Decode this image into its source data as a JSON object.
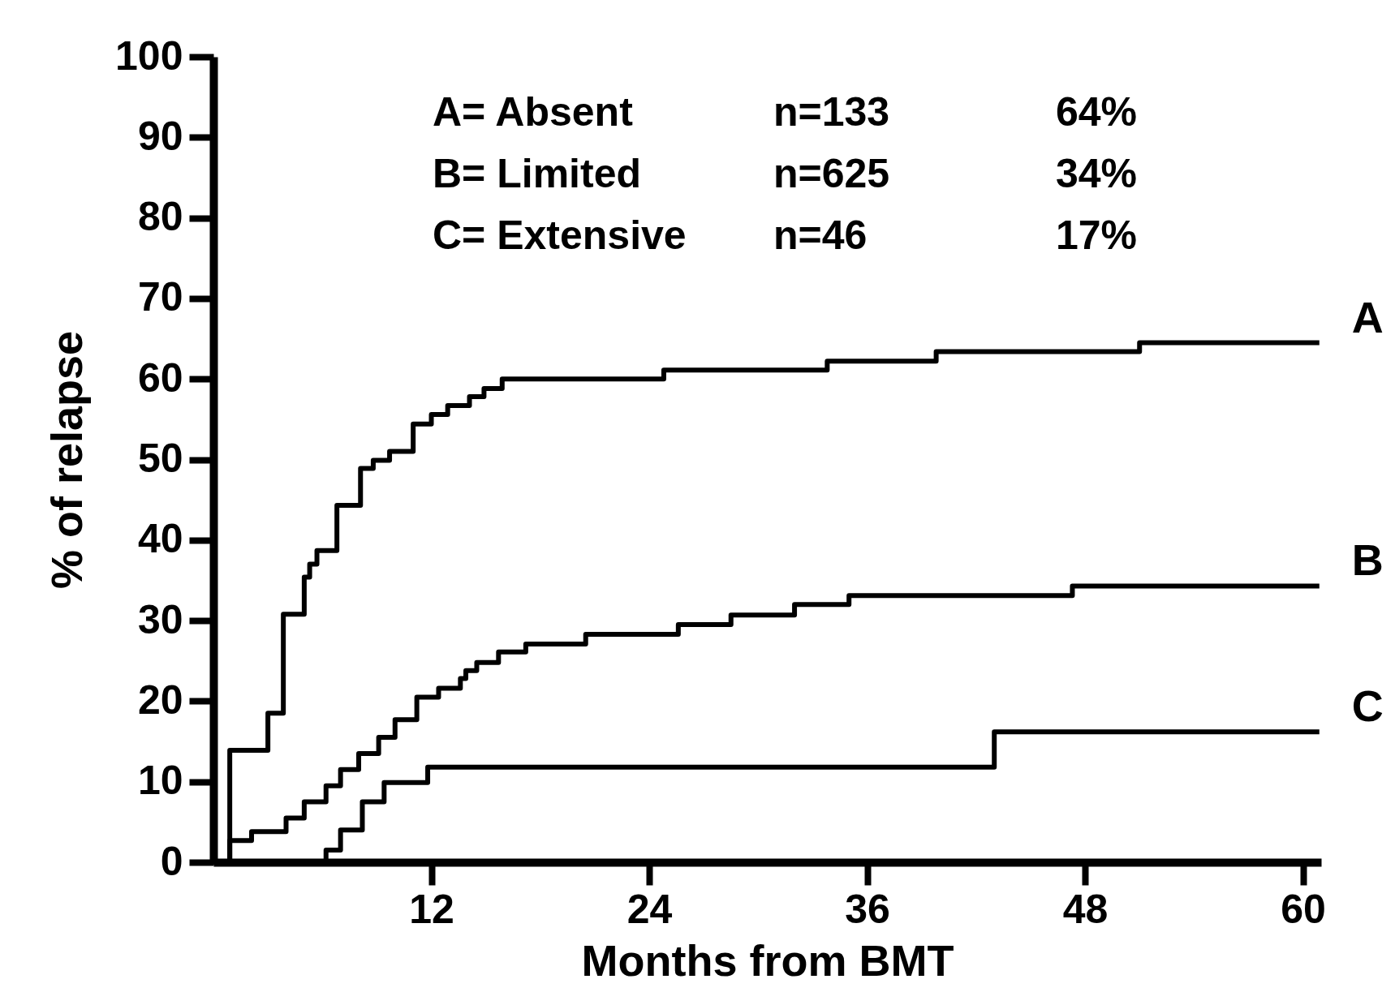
{
  "chart_data": {
    "type": "step",
    "xlabel": "Months from BMT",
    "ylabel": "% of relapse",
    "xlim": [
      0,
      61
    ],
    "xticks": [
      12,
      24,
      36,
      48,
      60
    ],
    "ylim": [
      0,
      100
    ],
    "yticks": [
      0,
      10,
      20,
      30,
      40,
      50,
      60,
      70,
      80,
      90,
      100
    ],
    "series": [
      {
        "name": "A",
        "color": "#000000",
        "x": [
          0,
          0.9,
          3.0,
          3.85,
          5.0,
          5.3,
          5.7,
          6.8,
          8.1,
          8.8,
          9.7,
          11.0,
          12.0,
          12.9,
          14.1,
          14.9,
          15.9,
          24.8,
          33.8,
          39.8,
          51.0,
          60.9
        ],
        "values": [
          0,
          13.9,
          18.5,
          30.8,
          35.4,
          37.0,
          38.7,
          44.3,
          48.9,
          49.9,
          51.0,
          54.4,
          55.6,
          56.7,
          57.8,
          58.8,
          60.0,
          61.1,
          62.2,
          63.4,
          64.5,
          64.5
        ]
      },
      {
        "name": "B",
        "color": "#000000",
        "x": [
          0,
          0.9,
          2.1,
          4.0,
          5.0,
          6.2,
          7.0,
          8.0,
          9.1,
          10.0,
          11.2,
          12.4,
          13.6,
          13.9,
          14.5,
          15.7,
          17.2,
          20.5,
          25.6,
          28.5,
          32.0,
          35.0,
          47.3,
          60.9
        ],
        "values": [
          0,
          2.7,
          3.8,
          5.5,
          7.5,
          9.5,
          11.5,
          13.5,
          15.5,
          17.7,
          20.5,
          21.6,
          22.8,
          23.8,
          24.8,
          26.1,
          27.1,
          28.3,
          29.5,
          30.7,
          32.0,
          33.1,
          34.3,
          34.3
        ]
      },
      {
        "name": "C",
        "color": "#000000",
        "x": [
          0,
          6.2,
          7.0,
          8.2,
          9.4,
          11.8,
          43.0,
          60.9
        ],
        "values": [
          0,
          1.5,
          4.0,
          7.5,
          9.9,
          11.8,
          16.2,
          16.2
        ]
      }
    ],
    "annotations": [
      "A= Absent",
      "n=133",
      "64%",
      "B= Limited",
      "n=625",
      "34%",
      "C= Extensive",
      "n=46",
      "17%"
    ]
  }
}
